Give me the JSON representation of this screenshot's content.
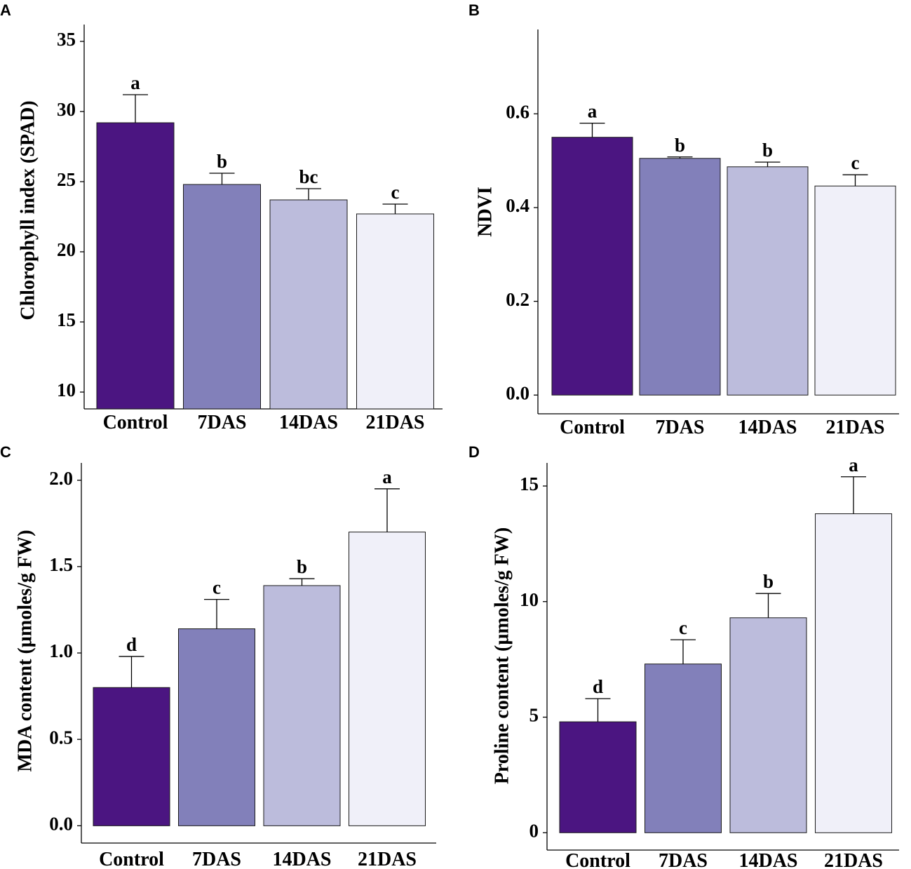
{
  "colors": {
    "Control": "#4b1581",
    "7DAS": "#8280ba",
    "14DAS": "#bcbcdc",
    "21DAS": "#f0f0f9"
  },
  "chart_data": [
    {
      "panel": "A",
      "type": "bar",
      "categories": [
        "Control",
        "7DAS",
        "14DAS",
        "21DAS"
      ],
      "values": [
        29.2,
        24.8,
        23.7,
        22.7
      ],
      "errors": [
        2.0,
        0.8,
        0.8,
        0.7
      ],
      "significance": [
        "a",
        "b",
        "bc",
        "c"
      ],
      "ylabel": "Chlorophyll index (SPAD)",
      "xlabel": "",
      "ylim": [
        8.8,
        36.2
      ],
      "yticks": [
        10,
        15,
        20,
        25,
        30,
        35
      ],
      "ytick_labels": [
        "10",
        "15",
        "20",
        "25",
        "30",
        "35"
      ]
    },
    {
      "panel": "B",
      "type": "bar",
      "categories": [
        "Control",
        "7DAS",
        "14DAS",
        "21DAS"
      ],
      "values": [
        0.55,
        0.505,
        0.487,
        0.446
      ],
      "errors": [
        0.03,
        0.003,
        0.01,
        0.024
      ],
      "significance": [
        "a",
        "b",
        "b",
        "c"
      ],
      "ylabel": "NDVI",
      "xlabel": "",
      "ylim": [
        -0.04,
        0.78
      ],
      "yticks": [
        0.0,
        0.2,
        0.4,
        0.6
      ],
      "ytick_labels": [
        "0.0",
        "0.2",
        "0.4",
        "0.6"
      ]
    },
    {
      "panel": "C",
      "type": "bar",
      "categories": [
        "Control",
        "7DAS",
        "14DAS",
        "21DAS"
      ],
      "values": [
        0.8,
        1.14,
        1.39,
        1.7
      ],
      "errors": [
        0.18,
        0.17,
        0.04,
        0.25
      ],
      "significance": [
        "d",
        "c",
        "b",
        "a"
      ],
      "ylabel": "MDA content (µmoles/g FW)",
      "xlabel": "",
      "ylim": [
        -0.1,
        2.1
      ],
      "yticks": [
        0.0,
        0.5,
        1.0,
        1.5,
        2.0
      ],
      "ytick_labels": [
        "0.0",
        "0.5",
        "1.0",
        "1.5",
        "2.0"
      ]
    },
    {
      "panel": "D",
      "type": "bar",
      "categories": [
        "Control",
        "7DAS",
        "14DAS",
        "21DAS"
      ],
      "values": [
        4.8,
        7.3,
        9.3,
        13.8
      ],
      "errors": [
        1.0,
        1.05,
        1.05,
        1.6
      ],
      "significance": [
        "d",
        "c",
        "b",
        "a"
      ],
      "ylabel": "Proline content (µmoles/g FW)",
      "xlabel": "",
      "ylim": [
        -0.75,
        16.0
      ],
      "yticks": [
        0,
        5,
        10,
        15
      ],
      "ytick_labels": [
        "0",
        "5",
        "10",
        "15"
      ]
    }
  ]
}
